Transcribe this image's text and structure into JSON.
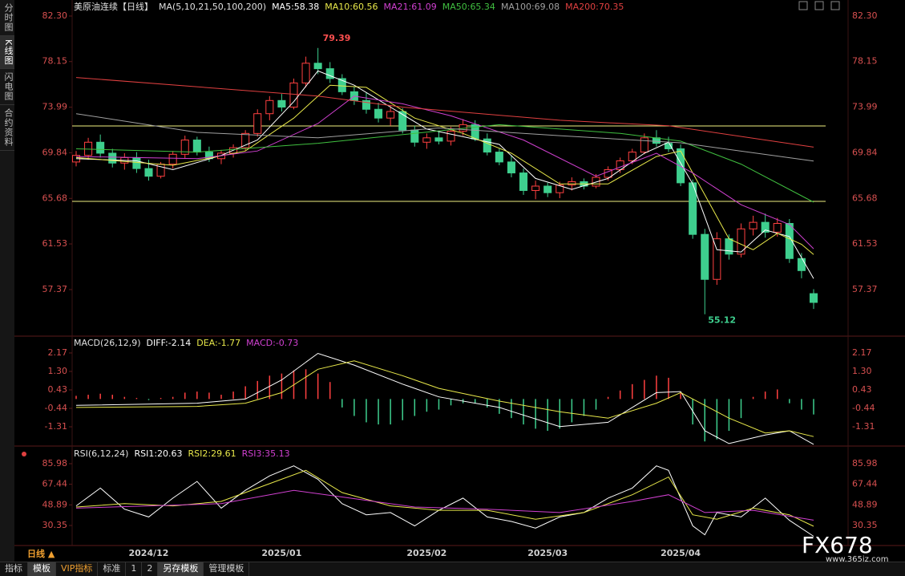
{
  "ui": {
    "sidebar": [
      "分时图",
      "K线图",
      "闪电图",
      "合约资料"
    ],
    "period": "日线 ▲",
    "toolbar": [
      "指标",
      "模板",
      "VIP指标",
      "标准",
      "1",
      "2",
      "另存模板",
      "管理模板"
    ],
    "watermark": {
      "logo": "FX678",
      "site": "www.365jz.com"
    }
  },
  "chart_data": [
    {
      "type": "candlestick",
      "title": "美原油连续【日线】",
      "legend_title": "MA(5,10,21,50,100,200)",
      "up_color": "#ff4040",
      "down_color": "#3ecf8e",
      "categories": [
        null,
        null,
        null,
        null,
        null,
        null,
        "2024/12",
        null,
        null,
        null,
        null,
        null,
        null,
        null,
        null,
        null,
        null,
        "2025/01",
        null,
        null,
        null,
        null,
        null,
        null,
        null,
        null,
        null,
        null,
        null,
        "2025/02",
        null,
        null,
        null,
        null,
        null,
        null,
        null,
        null,
        null,
        "2025/03",
        null,
        null,
        null,
        null,
        null,
        null,
        null,
        null,
        null,
        null,
        "2025/04",
        null,
        null,
        null,
        null,
        null,
        null,
        null,
        null,
        null,
        null,
        null
      ],
      "candles": [
        [
          69.0,
          70.0,
          68.6,
          69.6
        ],
        [
          69.6,
          71.2,
          69.2,
          70.8
        ],
        [
          70.8,
          71.5,
          69.4,
          69.8
        ],
        [
          69.8,
          70.2,
          68.5,
          68.9
        ],
        [
          68.9,
          69.8,
          68.3,
          69.4
        ],
        [
          69.4,
          69.9,
          68.0,
          68.4
        ],
        [
          68.4,
          69.2,
          67.3,
          67.7
        ],
        [
          67.7,
          69.0,
          67.5,
          68.8
        ],
        [
          68.8,
          70.0,
          68.4,
          69.7
        ],
        [
          69.7,
          71.4,
          69.3,
          71.0
        ],
        [
          71.0,
          71.3,
          69.6,
          69.9
        ],
        [
          69.9,
          70.4,
          69.0,
          69.3
        ],
        [
          69.3,
          70.1,
          68.8,
          69.8
        ],
        [
          69.8,
          70.6,
          69.4,
          70.3
        ],
        [
          70.3,
          71.9,
          70.0,
          71.6
        ],
        [
          71.6,
          73.8,
          71.3,
          73.4
        ],
        [
          73.4,
          75.0,
          72.8,
          74.6
        ],
        [
          74.6,
          75.2,
          73.6,
          74.0
        ],
        [
          74.0,
          76.6,
          73.8,
          76.2
        ],
        [
          76.2,
          78.6,
          75.8,
          78.0
        ],
        [
          78.0,
          79.39,
          77.0,
          77.5
        ],
        [
          77.5,
          78.1,
          76.2,
          76.6
        ],
        [
          76.6,
          77.0,
          75.1,
          75.4
        ],
        [
          75.4,
          75.9,
          74.2,
          74.6
        ],
        [
          74.6,
          75.3,
          73.4,
          73.8
        ],
        [
          73.8,
          74.4,
          72.6,
          73.0
        ],
        [
          73.0,
          74.1,
          72.3,
          73.6
        ],
        [
          73.6,
          73.9,
          71.6,
          71.9
        ],
        [
          71.9,
          72.3,
          70.4,
          70.8
        ],
        [
          70.8,
          71.6,
          70.2,
          71.2
        ],
        [
          71.2,
          71.8,
          70.6,
          70.9
        ],
        [
          70.9,
          72.2,
          70.5,
          71.8
        ],
        [
          71.8,
          72.9,
          71.4,
          72.4
        ],
        [
          72.4,
          72.8,
          70.9,
          71.1
        ],
        [
          71.1,
          71.6,
          69.6,
          69.9
        ],
        [
          69.9,
          70.2,
          68.7,
          69.0
        ],
        [
          69.0,
          69.6,
          67.6,
          68.0
        ],
        [
          68.0,
          68.4,
          66.0,
          66.4
        ],
        [
          66.4,
          67.3,
          65.6,
          66.8
        ],
        [
          66.8,
          67.1,
          65.8,
          66.2
        ],
        [
          66.2,
          67.2,
          65.7,
          66.9
        ],
        [
          66.9,
          67.6,
          66.4,
          67.2
        ],
        [
          67.2,
          67.5,
          66.5,
          66.8
        ],
        [
          66.8,
          67.9,
          66.6,
          67.6
        ],
        [
          67.6,
          68.6,
          67.3,
          68.3
        ],
        [
          68.3,
          69.4,
          68.0,
          69.1
        ],
        [
          69.1,
          70.2,
          68.8,
          69.9
        ],
        [
          69.9,
          71.6,
          69.7,
          71.2
        ],
        [
          71.2,
          71.9,
          70.4,
          70.7
        ],
        [
          70.7,
          71.3,
          69.9,
          70.2
        ],
        [
          70.2,
          70.6,
          66.8,
          67.1
        ],
        [
          67.1,
          67.4,
          62.0,
          62.4
        ],
        [
          62.4,
          62.9,
          55.12,
          58.3
        ],
        [
          58.3,
          62.6,
          57.8,
          62.0
        ],
        [
          62.0,
          62.4,
          60.1,
          60.6
        ],
        [
          60.6,
          63.4,
          60.3,
          62.9
        ],
        [
          62.9,
          64.1,
          62.3,
          63.5
        ],
        [
          63.5,
          64.3,
          62.1,
          62.6
        ],
        [
          62.6,
          63.9,
          62.2,
          63.4
        ],
        [
          63.4,
          63.8,
          59.8,
          60.2
        ],
        [
          60.2,
          60.7,
          58.4,
          59.1
        ],
        [
          57.0,
          57.4,
          55.6,
          56.2
        ]
      ],
      "series": [
        {
          "name": "MA5:58.38",
          "color": "#ffffff",
          "x": [
            0,
            5,
            8,
            12,
            15,
            18,
            20,
            23,
            26,
            29,
            32,
            35,
            38,
            41,
            44,
            47,
            49,
            51,
            52,
            53,
            55,
            57,
            59,
            61
          ],
          "values": [
            69.3,
            69.1,
            68.3,
            69.6,
            71.0,
            74.5,
            77.3,
            76.0,
            74.0,
            72.0,
            71.3,
            70.6,
            67.5,
            66.5,
            67.5,
            69.8,
            70.8,
            67.0,
            64.0,
            61.0,
            60.8,
            62.8,
            62.2,
            58.38
          ]
        },
        {
          "name": "MA10:60.56",
          "color": "#e8e84a",
          "x": [
            0,
            8,
            14,
            18,
            21,
            24,
            28,
            32,
            36,
            40,
            44,
            48,
            50,
            52,
            54,
            56,
            58,
            60,
            61
          ],
          "values": [
            69.4,
            68.7,
            70.0,
            73.0,
            76.0,
            75.8,
            73.0,
            71.6,
            69.8,
            67.0,
            67.0,
            69.5,
            70.0,
            66.0,
            62.0,
            61.0,
            62.5,
            61.5,
            60.56
          ]
        },
        {
          "name": "MA21:61.09",
          "color": "#d040d0",
          "x": [
            0,
            10,
            15,
            20,
            23,
            27,
            31,
            37,
            43,
            48,
            51,
            55,
            59,
            61
          ],
          "values": [
            69.5,
            69.3,
            70.0,
            72.5,
            75.0,
            74.3,
            73.2,
            71.0,
            67.7,
            69.8,
            68.0,
            65.1,
            63.3,
            61.09
          ]
        },
        {
          "name": "MA50:65.34",
          "color": "#40c040",
          "x": [
            0,
            10,
            20,
            28,
            35,
            45,
            50,
            55,
            61
          ],
          "values": [
            70.2,
            69.9,
            70.7,
            71.6,
            72.4,
            71.6,
            70.9,
            68.8,
            65.34
          ]
        },
        {
          "name": "MA100:69.08",
          "color": "#a0a0a0",
          "x": [
            0,
            10,
            20,
            30,
            40,
            50,
            61
          ],
          "values": [
            73.4,
            71.7,
            71.2,
            72.1,
            71.4,
            70.75,
            69.08
          ]
        },
        {
          "name": "MA200:70.35",
          "color": "#e04040",
          "x": [
            0,
            20,
            27,
            40,
            49,
            61
          ],
          "values": [
            76.7,
            75.0,
            74.0,
            72.8,
            72.3,
            70.35
          ]
        }
      ],
      "hlines": [
        72.28,
        65.41
      ],
      "hline_color": "#f0f080",
      "ylim": [
        53.2,
        83.03
      ],
      "yticks": [
        {
          "value": 82.3,
          "label": "82.30"
        },
        78.15,
        73.99,
        69.84,
        65.68,
        61.53,
        57.37
      ]
    },
    {
      "type": "macd",
      "title": "MACD(26,12,9)",
      "histogram": {
        "name": "MACD:-0.73",
        "color": "#d040d0",
        "up_color": "#ff4040",
        "down_color": "#3ecf8e",
        "values": [
          0.15,
          0.2,
          0.25,
          0.2,
          0.1,
          0.05,
          -0.05,
          0.05,
          0.1,
          0.3,
          0.35,
          0.3,
          0.2,
          0.35,
          0.6,
          0.85,
          1.1,
          1.2,
          1.35,
          1.4,
          1.2,
          0.8,
          -0.4,
          -0.8,
          -1.1,
          -1.2,
          -1.2,
          -1.0,
          -0.8,
          -0.6,
          -0.5,
          -0.3,
          -0.2,
          -0.2,
          -0.4,
          -0.7,
          -0.9,
          -1.2,
          -1.4,
          -1.5,
          -1.4,
          -1.1,
          -0.8,
          -0.5,
          0.1,
          0.4,
          0.7,
          0.9,
          1.1,
          1.0,
          0.3,
          -1.2,
          -2.0,
          -1.9,
          -1.5,
          -0.9,
          0.1,
          0.35,
          0.45,
          -0.2,
          -0.5,
          -0.73
        ]
      },
      "series": [
        {
          "name": "DIFF:-2.14",
          "color": "#ffffff",
          "x": [
            0,
            10,
            14,
            17,
            20,
            23,
            27,
            30,
            35,
            40,
            44,
            48,
            50,
            52,
            54,
            57,
            59,
            61
          ],
          "values": [
            -0.3,
            -0.2,
            0.0,
            0.9,
            2.15,
            1.6,
            0.7,
            0.1,
            -0.4,
            -1.3,
            -1.1,
            0.3,
            0.35,
            -1.5,
            -2.1,
            -1.7,
            -1.5,
            -2.14
          ]
        },
        {
          "name": "DEA:-1.77",
          "color": "#e8e84a",
          "x": [
            0,
            10,
            14,
            17,
            20,
            23,
            27,
            30,
            35,
            40,
            44,
            48,
            50,
            52,
            54,
            57,
            59,
            61
          ],
          "values": [
            -0.4,
            -0.35,
            -0.2,
            0.3,
            1.4,
            1.8,
            1.1,
            0.5,
            -0.1,
            -0.6,
            -0.9,
            -0.2,
            0.3,
            -0.3,
            -0.9,
            -1.6,
            -1.5,
            -1.77
          ]
        }
      ],
      "ylim": [
        -2.18,
        2.85
      ],
      "yticks": [
        2.17,
        {
          "value": 1.3,
          "label": "1.30"
        },
        0.43,
        -0.44,
        -1.31
      ]
    },
    {
      "type": "line",
      "title": "RSI(6,12,24)",
      "series": [
        {
          "name": "RSI1:20.63",
          "color": "#ffffff",
          "x": [
            0,
            2,
            4,
            6,
            8,
            10,
            12,
            14,
            16,
            18,
            20,
            22,
            24,
            26,
            28,
            30,
            32,
            34,
            36,
            38,
            40,
            42,
            44,
            46,
            48,
            49,
            50,
            51,
            52,
            53,
            55,
            57,
            59,
            61
          ],
          "values": [
            48,
            64,
            45,
            38,
            55,
            70,
            46,
            62,
            75,
            84,
            72,
            50,
            40,
            42,
            30,
            44,
            55,
            38,
            34,
            28,
            38,
            42,
            55,
            64,
            84,
            80,
            55,
            30,
            22,
            42,
            38,
            55,
            35,
            20.63
          ]
        },
        {
          "name": "RSI2:29.61",
          "color": "#e8e84a",
          "x": [
            0,
            4,
            8,
            12,
            16,
            19,
            22,
            26,
            30,
            34,
            38,
            42,
            46,
            49,
            51,
            53,
            56,
            59,
            61
          ],
          "values": [
            47,
            50,
            48,
            52,
            68,
            80,
            60,
            48,
            44,
            44,
            36,
            42,
            58,
            74,
            40,
            36,
            46,
            40,
            29.61
          ]
        },
        {
          "name": "RSI3:35.13",
          "color": "#d040d0",
          "x": [
            0,
            6,
            12,
            18,
            22,
            28,
            34,
            40,
            46,
            49,
            52,
            56,
            61
          ],
          "values": [
            46,
            48,
            50,
            62,
            56,
            47,
            45,
            42,
            52,
            58,
            42,
            44,
            35.13
          ]
        }
      ],
      "ylim": [
        12.31,
        97.54
      ],
      "yticks": [
        85.98,
        67.44,
        48.89,
        30.35
      ]
    }
  ]
}
